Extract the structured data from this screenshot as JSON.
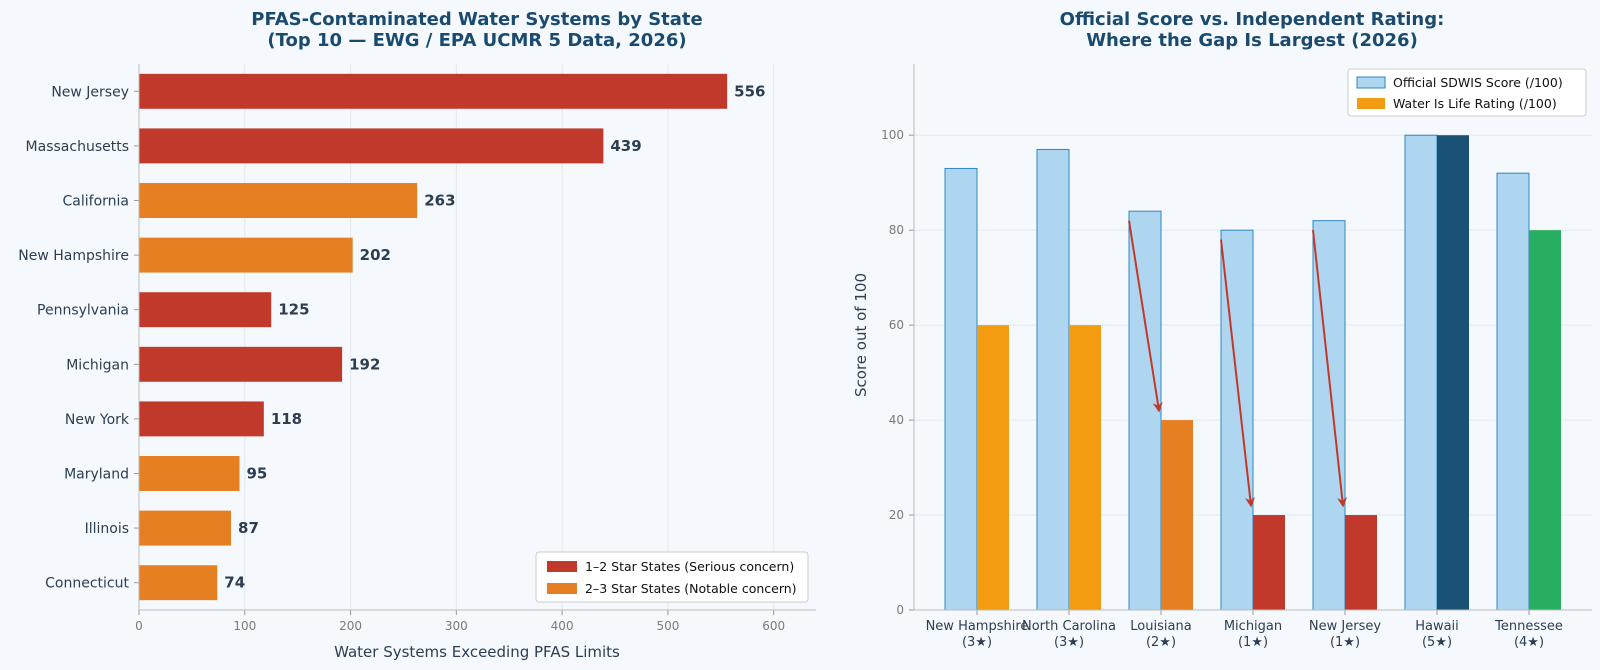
{
  "charts": [
    {
      "type": "bar",
      "orientation": "horizontal",
      "title": [
        "PFAS-Contaminated Water Systems by State",
        "(Top 10 — EWG / EPA UCMR 5 Data, 2026)"
      ],
      "xlabel": "Water Systems Exceeding PFAS Limits",
      "xlim": [
        0,
        640
      ],
      "xticks": [
        0,
        100,
        200,
        300,
        400,
        500,
        600
      ],
      "grid": "x",
      "legend_position": "lower-right",
      "legend": [
        {
          "label": "1–2 Star States (Serious concern)",
          "color": "#c0392b"
        },
        {
          "label": "2–3 Star States (Notable concern)",
          "color": "#e67e22"
        }
      ],
      "categories": [
        "New Jersey",
        "Massachusetts",
        "California",
        "New Hampshire",
        "Pennsylvania",
        "Michigan",
        "New York",
        "Maryland",
        "Illinois",
        "Connecticut"
      ],
      "values": [
        556,
        439,
        263,
        202,
        125,
        192,
        118,
        95,
        87,
        74
      ],
      "groups": [
        0,
        0,
        1,
        1,
        0,
        0,
        0,
        1,
        1,
        1
      ]
    },
    {
      "type": "bar",
      "orientation": "vertical",
      "title": [
        "Official Score vs. Independent Rating:",
        "Where the Gap Is Largest (2026)"
      ],
      "ylabel": "Score out of 100",
      "ylim": [
        0,
        115
      ],
      "yticks": [
        0,
        20,
        40,
        60,
        80,
        100
      ],
      "grid": "y",
      "legend_position": "top-right",
      "categories": [
        {
          "name": "New Hampshire",
          "sub": "(3★)"
        },
        {
          "name": "North Carolina",
          "sub": "(3★)"
        },
        {
          "name": "Louisiana",
          "sub": "(2★)"
        },
        {
          "name": "Michigan",
          "sub": "(1★)"
        },
        {
          "name": "New Jersey",
          "sub": "(1★)"
        },
        {
          "name": "Hawaii",
          "sub": "(5★)"
        },
        {
          "name": "Tennessee",
          "sub": "(4★)"
        }
      ],
      "series": [
        {
          "name": "Official SDWIS Score (/100)",
          "values": [
            93,
            97,
            84,
            80,
            82,
            100,
            92
          ],
          "colors": [
            "#aed6f1",
            "#aed6f1",
            "#aed6f1",
            "#aed6f1",
            "#aed6f1",
            "#aed6f1",
            "#aed6f1"
          ],
          "edge": "#2e86c1",
          "legend_color": "#aed6f1"
        },
        {
          "name": "Water Is Life Rating (/100)",
          "values": [
            60,
            60,
            40,
            20,
            20,
            100,
            80
          ],
          "colors": [
            "#f39c12",
            "#f39c12",
            "#e67e22",
            "#c0392b",
            "#c0392b",
            "#1a5276",
            "#27ae60"
          ],
          "legend_color": "#f39c12"
        }
      ],
      "arrows": [
        {
          "category": 2,
          "from": 82,
          "to": 42
        },
        {
          "category": 3,
          "from": 78,
          "to": 22
        },
        {
          "category": 4,
          "from": 80,
          "to": 22
        }
      ],
      "arrow_color": "#c0392b"
    }
  ]
}
